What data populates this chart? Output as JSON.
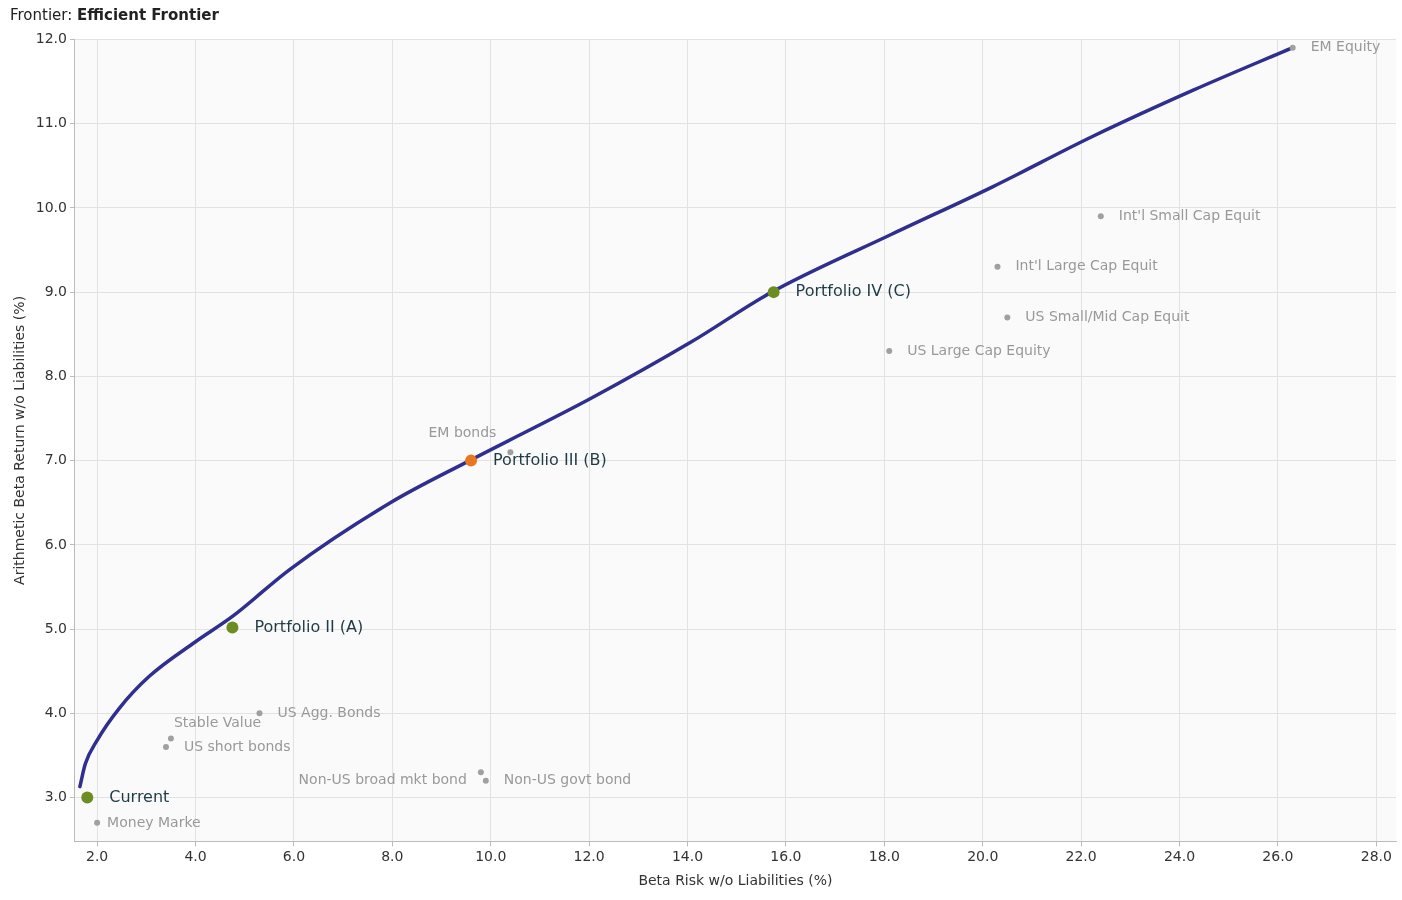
{
  "chart_data": {
    "type": "scatter",
    "title": "Frontier: Efficient Frontier",
    "xlabel": "Beta Risk w/o Liabilities (%)",
    "ylabel": "Arithmetic Beta Return w/o Liabilities (%)",
    "series": [
      {
        "type": "line",
        "marker": "none",
        "color": "#2e2f8f",
        "x": [
          1.65,
          1.76,
          2.0,
          2.45,
          3.06,
          4.0,
          4.75,
          5.92,
          7.96,
          9.57,
          12.04,
          14.08,
          15.71,
          18.16,
          20.2,
          22.24,
          24.29,
          26.29
        ],
        "values": [
          3.13,
          3.4,
          3.68,
          4.06,
          4.44,
          4.85,
          5.15,
          5.71,
          6.5,
          7.0,
          7.74,
          8.41,
          9.0,
          9.69,
          10.25,
          10.85,
          11.4,
          11.9
        ]
      },
      {
        "colors": [
          "#6b8e23",
          "#6b8e23",
          "#e87722",
          "#6b8e23"
        ],
        "x": [
          1.8,
          4.75,
          9.6,
          15.75
        ],
        "values": [
          3.0,
          5.02,
          7.0,
          9.0
        ]
      },
      {
        "color": "#a0a0a0",
        "x": [
          2.0,
          3.4,
          3.5,
          5.3,
          9.8,
          9.9,
          10.4,
          18.1,
          20.5,
          20.3,
          22.4,
          26.3
        ],
        "values": [
          2.7,
          3.6,
          3.7,
          4.0,
          3.3,
          3.2,
          7.1,
          8.3,
          8.7,
          9.3,
          9.9,
          11.9
        ]
      }
    ],
    "annotations": [
      {
        "text": "Current",
        "x": 1.8,
        "y": 3.0
      },
      {
        "text": "Portfolio II (A)",
        "x": 4.75,
        "y": 5.02
      },
      {
        "text": "Portfolio III (B)",
        "x": 9.6,
        "y": 7.0
      },
      {
        "text": "Portfolio IV (C)",
        "x": 15.75,
        "y": 9.0
      },
      {
        "text": "Money Marke",
        "x": 2.0,
        "y": 2.7
      },
      {
        "text": "US short bonds",
        "x": 3.4,
        "y": 3.6
      },
      {
        "text": "Stable Value",
        "x": 3.5,
        "y": 3.7
      },
      {
        "text": "US Agg. Bonds",
        "x": 5.3,
        "y": 4.0
      },
      {
        "text": "Non-US broad mkt bond",
        "x": 9.8,
        "y": 3.3
      },
      {
        "text": "Non-US govt bond",
        "x": 9.9,
        "y": 3.2
      },
      {
        "text": "EM bonds",
        "x": 10.4,
        "y": 7.1
      },
      {
        "text": "US Large Cap Equity",
        "x": 18.1,
        "y": 8.3
      },
      {
        "text": "US Small/Mid Cap Equit",
        "x": 20.5,
        "y": 8.7
      },
      {
        "text": "Int'l Large Cap Equit",
        "x": 20.3,
        "y": 9.3
      },
      {
        "text": "Int'l Small Cap Equit",
        "x": 22.4,
        "y": 9.9
      },
      {
        "text": "EM Equity",
        "x": 26.3,
        "y": 11.9
      }
    ],
    "xlim": [
      1.55,
      28.4
    ],
    "ylim": [
      2.48,
      12.0
    ],
    "xticks": [
      {
        "value": 2,
        "label": "2.0"
      },
      {
        "value": 4,
        "label": "4.0"
      },
      {
        "value": 6,
        "label": "6.0"
      },
      {
        "value": 8,
        "label": "8.0"
      },
      {
        "value": 10,
        "label": "10.0"
      },
      {
        "value": 12,
        "label": "12.0"
      },
      {
        "value": 14,
        "label": "14.0"
      },
      {
        "value": 16,
        "label": "16.0"
      },
      {
        "value": 18,
        "label": "18.0"
      },
      {
        "value": 20,
        "label": "20.0"
      },
      {
        "value": 22,
        "label": "22.0"
      },
      {
        "value": 24,
        "label": "24.0"
      },
      {
        "value": 26,
        "label": "26.0"
      },
      {
        "value": 28,
        "label": "28.0"
      }
    ],
    "yticks": [
      {
        "value": 3,
        "label": "3.0"
      },
      {
        "value": 4,
        "label": "4.0"
      },
      {
        "value": 5,
        "label": "5.0"
      },
      {
        "value": 6,
        "label": "6.0"
      },
      {
        "value": 7,
        "label": "7.0"
      },
      {
        "value": 8,
        "label": "8.0"
      },
      {
        "value": 9,
        "label": "9.0"
      },
      {
        "value": 10,
        "label": "10.0"
      },
      {
        "value": 11,
        "label": "11.0"
      },
      {
        "value": 12,
        "label": "12.0"
      }
    ],
    "grid": true,
    "legend": false,
    "marker": "circle",
    "line_style": "solid"
  }
}
